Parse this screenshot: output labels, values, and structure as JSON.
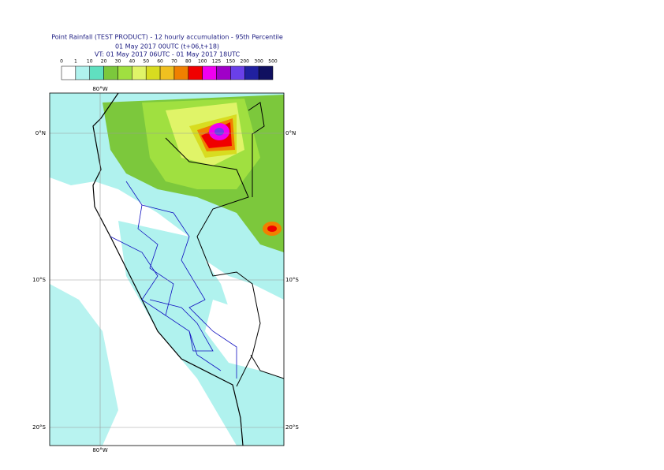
{
  "header": {
    "title": "Point Rainfall (TEST PRODUCT) - 12 hourly accumulation - 95th Percentile",
    "run": "01 May 2017 00UTC (t+06,t+18)",
    "valid": "VT: 01 May 2017 06UTC - 01 May 2017 18UTC"
  },
  "legend": {
    "labels": [
      0,
      1,
      10,
      20,
      30,
      40,
      50,
      60,
      70,
      80,
      100,
      125,
      150,
      200,
      300,
      500
    ],
    "colors": [
      "#ffffff",
      "#b0f2ee",
      "#60e0c0",
      "#7cc83c",
      "#a0e040",
      "#e0f468",
      "#d8dc20",
      "#f0c020",
      "#f08000",
      "#f00000",
      "#f000f0",
      "#a000c8",
      "#6a40e8",
      "#2020a0",
      "#101060"
    ]
  },
  "map": {
    "lon_labels": [
      "80°W"
    ],
    "lat_labels": [
      "0°N",
      "10°S",
      "20°S"
    ]
  }
}
